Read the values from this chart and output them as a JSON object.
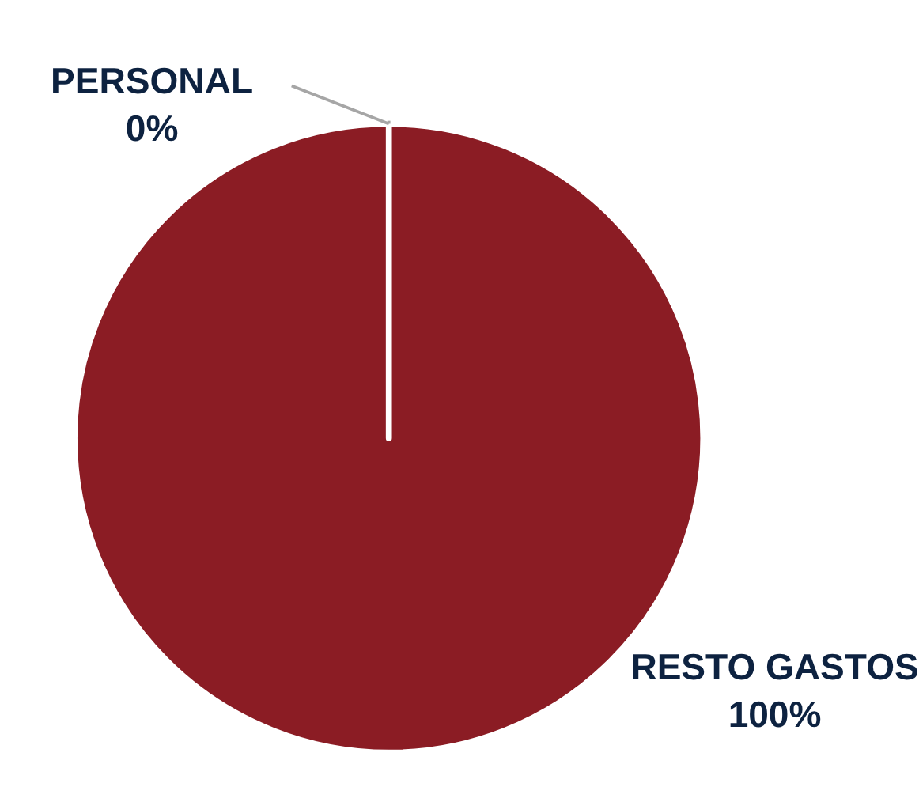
{
  "chart_data": {
    "type": "pie",
    "categories": [
      "PERSONAL",
      "RESTO GASTOS"
    ],
    "values": [
      0,
      100
    ],
    "colors": [
      "#8b1c24",
      "#8b1c24"
    ],
    "value_labels": [
      "0%",
      "100%"
    ]
  }
}
